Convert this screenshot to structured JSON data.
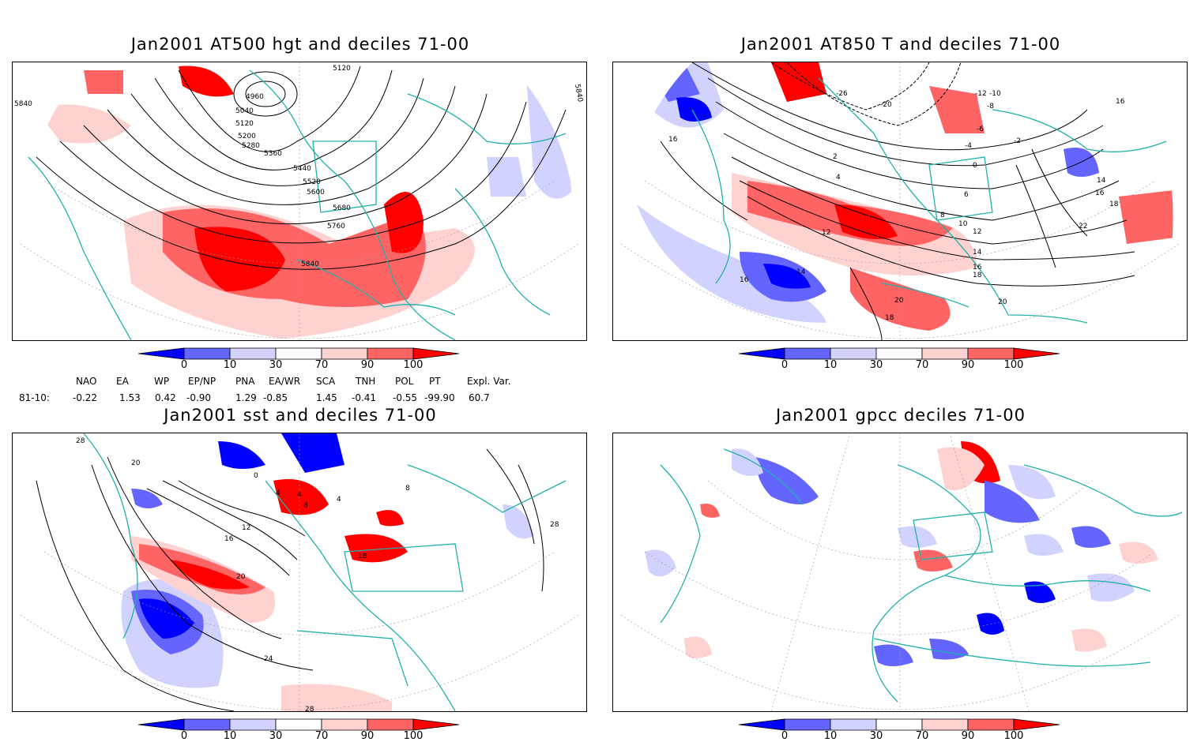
{
  "panels": [
    {
      "title": "Jan2001 AT500 hgt and deciles 71-00"
    },
    {
      "title": "Jan2001 AT850 T and deciles 71-00"
    },
    {
      "title": "Jan2001 sst and deciles 71-00"
    },
    {
      "title": "Jan2001 gpcc deciles 71-00"
    }
  ],
  "colorbar": {
    "labels": [
      "0",
      "10",
      "30",
      "70",
      "90",
      "100"
    ],
    "colors": [
      "#0000ff",
      "#6464ff",
      "#d2d2ff",
      "#ffffff",
      "#ffd2d2",
      "#ff6464",
      "#ff0000"
    ]
  },
  "contour_labels": {
    "hgt": [
      "5840",
      "5120",
      "4960",
      "5040",
      "5120",
      "5200",
      "5280",
      "5360",
      "5440",
      "5520",
      "5600",
      "5680",
      "5760",
      "5840",
      "5840"
    ],
    "t850": [
      "16",
      "-26",
      "-20",
      "-12",
      "-10",
      "-8",
      "-6",
      "-4",
      "-2",
      "0",
      "2",
      "4",
      "6",
      "8",
      "10",
      "12",
      "12",
      "14",
      "14",
      "16",
      "16",
      "18",
      "18",
      "20",
      "20",
      "22",
      "16",
      "16",
      "18",
      "14"
    ],
    "sst": [
      "28",
      "20",
      "0",
      "4",
      "4",
      "8",
      "4",
      "16",
      "12",
      "20",
      "24",
      "28",
      "28",
      "18",
      "8"
    ]
  },
  "indices": {
    "headers": [
      "NAO",
      "EA",
      "WP",
      "EP/NP",
      "PNA",
      "EA/WR",
      "SCA",
      "TNH",
      "POL",
      "PT",
      "Expl. Var."
    ],
    "row_label": "81-10:",
    "values": [
      "-0.22",
      "1.53",
      "0.42",
      "-0.90",
      "1.29",
      "-0.85",
      "1.45",
      "-0.41",
      "-0.55",
      "-99.90",
      "60.7"
    ]
  }
}
